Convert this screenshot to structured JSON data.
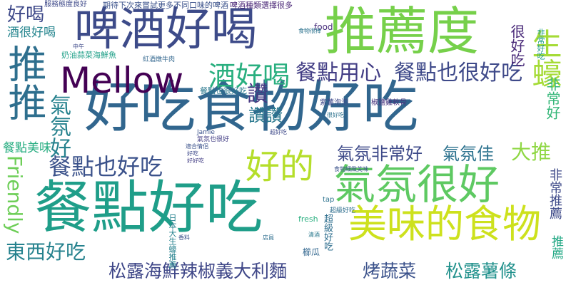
{
  "words": [
    {
      "text": "好吃食物好吃",
      "color": "#31668e"
    },
    {
      "text": "餐點好吃",
      "color": "#1f9e89"
    },
    {
      "text": "推薦度",
      "color": "#76d04a"
    },
    {
      "text": "啤酒好喝",
      "color": "#3d4b89"
    },
    {
      "text": "氣氛很好",
      "color": "#5ec962"
    },
    {
      "text": "美味的食物",
      "color": "#cde11d"
    },
    {
      "text": "推推",
      "color": "#2e6f8e"
    },
    {
      "text": "Mellow",
      "color": "#440154"
    },
    {
      "text": "好的",
      "color": "#b5de2b"
    },
    {
      "text": "生蠔",
      "color": "#a5db36"
    },
    {
      "text": "酒好喝",
      "color": "#29af7f"
    },
    {
      "text": "餐點用心",
      "color": "#433e85"
    },
    {
      "text": "餐點也很好吃",
      "color": "#3e4989"
    },
    {
      "text": "餐點也好吃",
      "color": "#3b528b"
    },
    {
      "text": "氣氛好",
      "color": "#26828e"
    },
    {
      "text": "Friendly",
      "color": "#6ece58"
    },
    {
      "text": "東西好吃",
      "color": "#26828e"
    },
    {
      "text": "松露海鮮辣椒義大利麵",
      "color": "#3f4788"
    },
    {
      "text": "烤蔬菜",
      "color": "#3b528b"
    },
    {
      "text": "松露薯條",
      "color": "#21918c"
    },
    {
      "text": "氣氛非常好",
      "color": "#3e4a89"
    },
    {
      "text": "氣氛佳",
      "color": "#2c728e"
    },
    {
      "text": "大推",
      "color": "#8fd744"
    },
    {
      "text": "讚",
      "color": "#453781"
    },
    {
      "text": "讚讚",
      "color": "#2a788e"
    },
    {
      "text": "好喝",
      "color": "#3e4989"
    },
    {
      "text": "酒很好喝",
      "color": "#25858e"
    },
    {
      "text": "餐點美味",
      "color": "#27ad81"
    },
    {
      "text": "很好吃",
      "color": "#482878"
    },
    {
      "text": "非常好",
      "color": "#35b779"
    },
    {
      "text": "非常推薦",
      "color": "#3e4a89"
    },
    {
      "text": "推薦",
      "color": "#22a884"
    },
    {
      "text": "food",
      "color": "#472d7b"
    },
    {
      "text": "fresh",
      "color": "#29af7f"
    },
    {
      "text": "tap",
      "color": "#2c728e"
    },
    {
      "text": "Jamie",
      "color": "#3b528b"
    },
    {
      "text": "超級好吃",
      "color": "#2e6e8e"
    },
    {
      "text": "櫛瓜",
      "color": "#31668e"
    },
    {
      "text": "期待下次來嘗試更多不同口味的啤酒",
      "color": "#3b528b"
    },
    {
      "text": "啤酒種類選擇很多",
      "color": "#482475"
    },
    {
      "text": "服務態度良好",
      "color": "#3e4989"
    },
    {
      "text": "奶油蒜菜海鮮魚",
      "color": "#1fa088"
    },
    {
      "text": "紅酒燉牛肉",
      "color": "#31668e"
    },
    {
      "text": "餐點也很好吃",
      "color": "#2a788e"
    },
    {
      "text": "食物很棒",
      "color": "#2c728e"
    },
    {
      "text": "紫薯泡泡",
      "color": "#3e4989"
    },
    {
      "text": "椒鹽雞軟骨",
      "color": "#46337e"
    },
    {
      "text": "氣氛也很好",
      "color": "#433e85"
    },
    {
      "text": "超級好吃",
      "color": "#2e6e8e"
    },
    {
      "text": "食物細緻美味",
      "color": "#3b528b"
    },
    {
      "text": "非常好吃",
      "color": "#1f9e89"
    },
    {
      "text": "中午",
      "color": "#3e4989"
    },
    {
      "text": "好吃",
      "color": "#3e4989"
    },
    {
      "text": "好好吃",
      "color": "#433e85"
    },
    {
      "text": "很好吃",
      "color": "#2c728e"
    },
    {
      "text": "超好吃",
      "color": "#3e4989"
    },
    {
      "text": "適合情侶",
      "color": "#3b528b"
    },
    {
      "text": "清酒",
      "color": "#2a788e"
    },
    {
      "text": "日本大生蠔推薦",
      "color": "#26828e"
    },
    {
      "text": "香料",
      "color": "#3b528b"
    },
    {
      "text": "店員",
      "color": "#2e6e8e"
    }
  ]
}
